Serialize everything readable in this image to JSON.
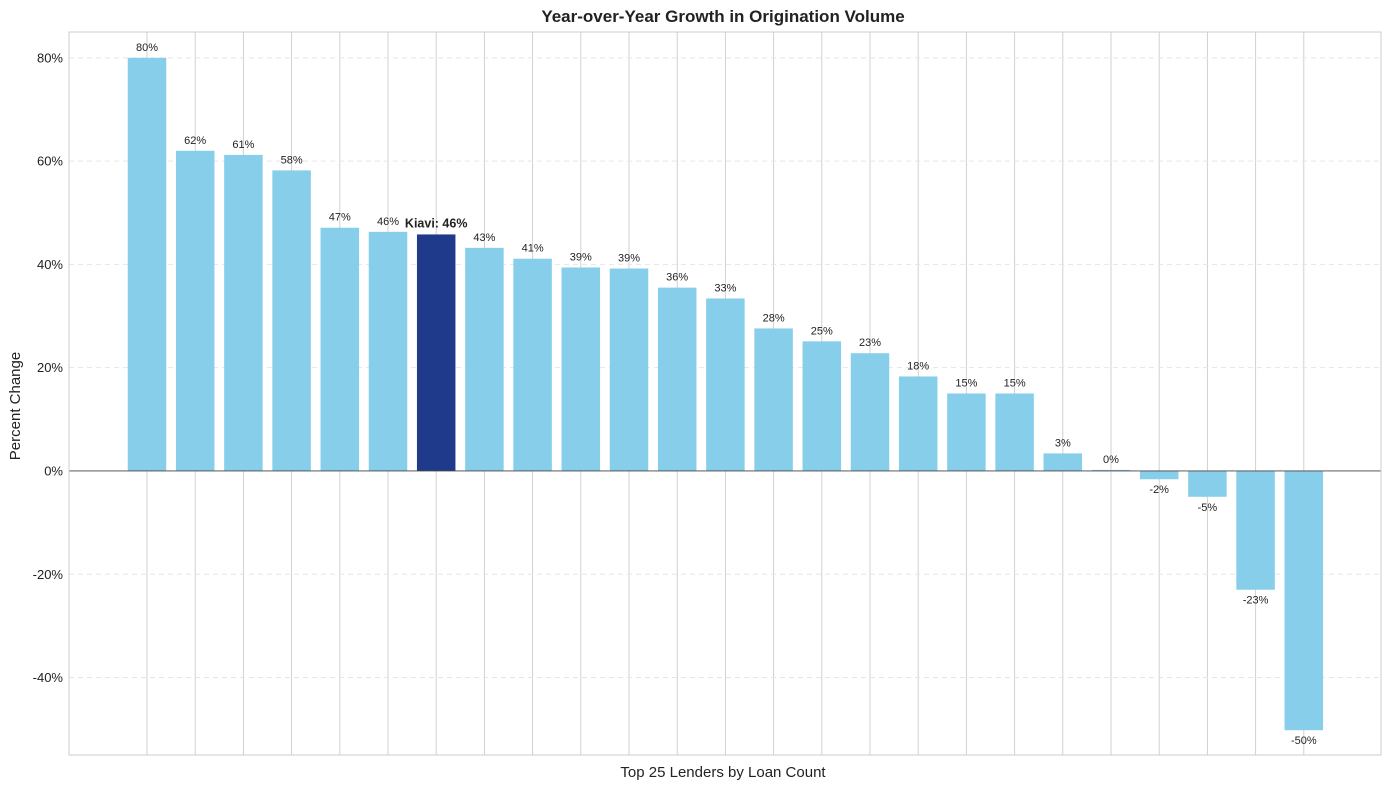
{
  "chart_data": {
    "type": "bar",
    "title": "Year-over-Year Growth in Origination Volume",
    "xlabel": "Top 25 Lenders by Loan Count",
    "ylabel": "Percent Change",
    "ylim": [
      -55,
      85
    ],
    "yticks": [
      -40,
      -20,
      0,
      20,
      40,
      60,
      80
    ],
    "ytick_labels": [
      "-40%",
      "-20%",
      "0%",
      "20%",
      "40%",
      "60%",
      "80%"
    ],
    "grid": true,
    "legend": "none",
    "colors": {
      "default": "#87CEEB",
      "highlight": "#1F3A8A",
      "zero_line": "#444444",
      "grid": "#e5e5e5",
      "frame": "#cccccc"
    },
    "values": [
      80,
      62,
      61.2,
      58.2,
      47.1,
      46.3,
      45.8,
      43.2,
      41.1,
      39.4,
      39.2,
      35.5,
      33.4,
      27.6,
      25.1,
      22.8,
      18.3,
      15.0,
      15.0,
      3.4,
      0.2,
      -1.6,
      -5.0,
      -23.0,
      -50.2
    ],
    "labels": [
      "80%",
      "62%",
      "61%",
      "58%",
      "47%",
      "46%",
      "Kiavi: 46%",
      "43%",
      "41%",
      "39%",
      "39%",
      "36%",
      "33%",
      "28%",
      "25%",
      "23%",
      "18%",
      "15%",
      "15%",
      "3%",
      "0%",
      "-2%",
      "-5%",
      "-23%",
      "-50%"
    ],
    "highlight_index": 6
  }
}
